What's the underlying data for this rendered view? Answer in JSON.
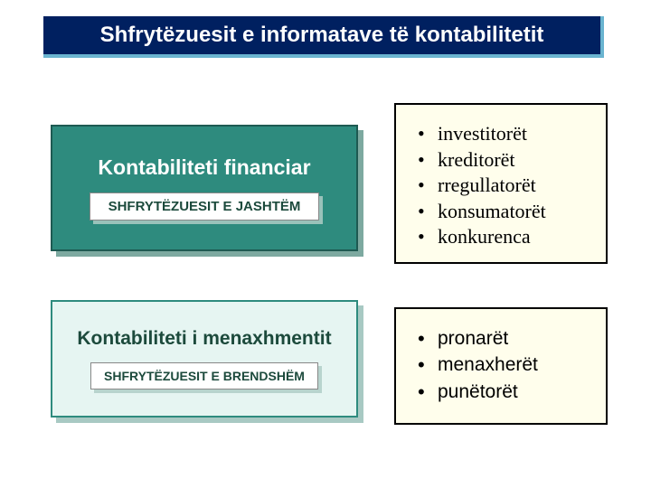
{
  "title": "Shfrytëzuesit e informatave të kontabilitetit",
  "left_box_1": {
    "heading": "Kontabiliteti financiar",
    "sub": "SHFRYTËZUESIT E JASHTËM",
    "bg_color": "#2e8b7e",
    "border_color": "#1e5a52",
    "shadow_color": "#7da9a0",
    "heading_color": "#ffffff"
  },
  "left_box_2": {
    "heading": "Kontabiliteti i menaxhmentit",
    "sub": "SHFRYTËZUESIT E BRENDSHËM",
    "bg_color": "#e6f5f2",
    "border_color": "#2e8b7e",
    "shadow_color": "#a8c9c3",
    "heading_color": "#1c4a3c"
  },
  "right_box_1": {
    "items": [
      "investitorët",
      "kreditorët",
      "rregullatorët",
      "konsumatorët",
      "konkurenca"
    ],
    "bg_color": "#fffeec",
    "font_family": "Times New Roman"
  },
  "right_box_2": {
    "items": [
      "pronarët",
      "menaxherët",
      "punëtorët"
    ],
    "bg_color": "#fffeec",
    "font_family": "Arial"
  },
  "title_bar": {
    "bg_color": "#002060",
    "accent_color": "#6ab4d0",
    "text_color": "#ffffff"
  }
}
